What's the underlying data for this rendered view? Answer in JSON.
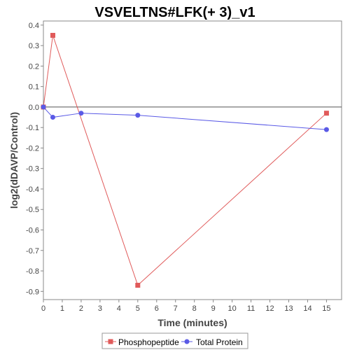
{
  "chart_data": {
    "type": "line",
    "title": "VSVELTNS#LFK(+ 3)_v1",
    "xlabel": "Time (minutes)",
    "ylabel": "log2(dDAVP/Control)",
    "xlim": [
      0,
      15.8
    ],
    "ylim": [
      -0.94,
      0.42
    ],
    "x_ticks": [
      0,
      1,
      2,
      3,
      4,
      5,
      6,
      7,
      8,
      9,
      10,
      11,
      12,
      13,
      14,
      15
    ],
    "y_ticks": [
      0.4,
      0.3,
      0.2,
      0.1,
      0.0,
      -0.1,
      -0.2,
      -0.3,
      -0.4,
      -0.5,
      -0.6,
      -0.7,
      -0.8,
      -0.9
    ],
    "y_tick_labels": [
      "0.4",
      "0.3",
      "0.2",
      "0.1",
      "0.0",
      "-0.1",
      "-0.2",
      "-0.3",
      "-0.4",
      "-0.5",
      "-0.6",
      "-0.7",
      "-0.8",
      "-0.9"
    ],
    "zero_line": true,
    "grid": false,
    "legend_position": "bottom",
    "series": [
      {
        "name": "Phosphopeptide",
        "color": "#e05a5a",
        "marker": "square",
        "points": [
          {
            "x": 0,
            "y": 0.0
          },
          {
            "x": 0.5,
            "y": 0.35
          },
          {
            "x": 5,
            "y": -0.87
          },
          {
            "x": 15,
            "y": -0.03
          }
        ]
      },
      {
        "name": "Total Protein",
        "color": "#5a5ae6",
        "marker": "circle",
        "points": [
          {
            "x": 0,
            "y": 0.0
          },
          {
            "x": 0.5,
            "y": -0.05
          },
          {
            "x": 2,
            "y": -0.03
          },
          {
            "x": 5,
            "y": -0.04
          },
          {
            "x": 15,
            "y": -0.11
          }
        ]
      }
    ]
  }
}
